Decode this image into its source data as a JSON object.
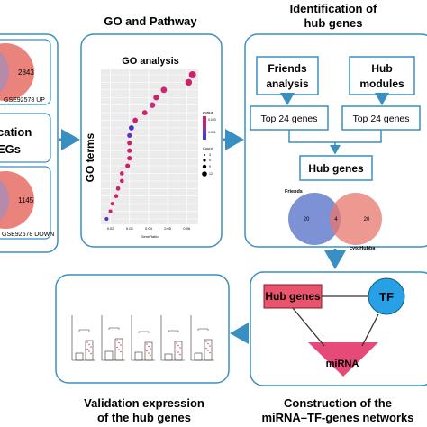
{
  "colors": {
    "panel_border": "#3a8fc2",
    "arrow": "#3a8fc2",
    "venn_red": "#e8766d",
    "venn_blue": "#6f86cf",
    "hub_red": "#e9536b",
    "tf_blue": "#27a0e6",
    "mirna_pink": "#e64a78"
  },
  "deg": {
    "up_count": "2843",
    "up_label": "GSE92578 UP",
    "title_line1": "cation",
    "title_line2": "EGs",
    "down_count": "1145",
    "down_label": "GSE92578 DOWN"
  },
  "go": {
    "panel_title": "GO and Pathway",
    "chart_title": "GO analysis",
    "ylabel": "GO terms",
    "xlabel": "GeneRatio",
    "legend_pvalue": "pvalue",
    "legend_count": "Count",
    "legend_pvalue_ticks": [
      "0.003",
      "0.001"
    ],
    "legend_count_ticks": [
      "3",
      "6",
      "9",
      "12"
    ]
  },
  "chart_data": {
    "type": "scatter",
    "xlabel": "GeneRatio",
    "ylabel": "GO terms",
    "title": "GO analysis",
    "x_ticks": [
      "0.02",
      "0.03",
      "0.04",
      "0.05",
      "0.06"
    ],
    "xlim": [
      0.015,
      0.066
    ],
    "points": [
      {
        "x": 0.063,
        "count": 10,
        "color": "#d1206a"
      },
      {
        "x": 0.061,
        "count": 9,
        "color": "#d1206a"
      },
      {
        "x": 0.048,
        "count": 8,
        "color": "#c82a70"
      },
      {
        "x": 0.044,
        "count": 7,
        "color": "#d1206a"
      },
      {
        "x": 0.042,
        "count": 7,
        "color": "#c42f7a"
      },
      {
        "x": 0.038,
        "count": 6,
        "color": "#d1206a"
      },
      {
        "x": 0.033,
        "count": 6,
        "color": "#d1206a"
      },
      {
        "x": 0.031,
        "count": 6,
        "color": "#4b2fd6"
      },
      {
        "x": 0.03,
        "count": 5,
        "color": "#6a2bc9"
      },
      {
        "x": 0.03,
        "count": 5,
        "color": "#d1206a"
      },
      {
        "x": 0.03,
        "count": 5,
        "color": "#d1206a"
      },
      {
        "x": 0.03,
        "count": 5,
        "color": "#d1206a"
      },
      {
        "x": 0.029,
        "count": 5,
        "color": "#d1206a"
      },
      {
        "x": 0.026,
        "count": 4,
        "color": "#d1206a"
      },
      {
        "x": 0.026,
        "count": 4,
        "color": "#d1206a"
      },
      {
        "x": 0.024,
        "count": 4,
        "color": "#d1206a"
      },
      {
        "x": 0.023,
        "count": 4,
        "color": "#d1206a"
      },
      {
        "x": 0.021,
        "count": 3,
        "color": "#d1206a"
      },
      {
        "x": 0.02,
        "count": 3,
        "color": "#d1206a"
      },
      {
        "x": 0.018,
        "count": 3,
        "color": "#4b2fd6"
      }
    ]
  },
  "hub": {
    "panel_title_line1": "Identification of",
    "panel_title_line2": "hub genes",
    "friends_line1": "Friends",
    "friends_line2": "analysis",
    "modules_line1": "Hub",
    "modules_line2": "modules",
    "top_left": "Top 24 genes",
    "top_right": "Top 24 genes",
    "hub_genes": "Hub genes",
    "venn_friends": "Friends",
    "venn_cyto": "cytoHubba",
    "venn_left": "20",
    "venn_mid": "4",
    "venn_right": "20"
  },
  "network": {
    "hub_genes": "Hub genes",
    "tf": "TF",
    "mirna": "miRNA",
    "caption_line1": "Construction of the",
    "caption_line2": "miRNA–TF-genes networks"
  },
  "validation": {
    "caption_line1": "Validation expression",
    "caption_line2": "of the hub genes"
  }
}
